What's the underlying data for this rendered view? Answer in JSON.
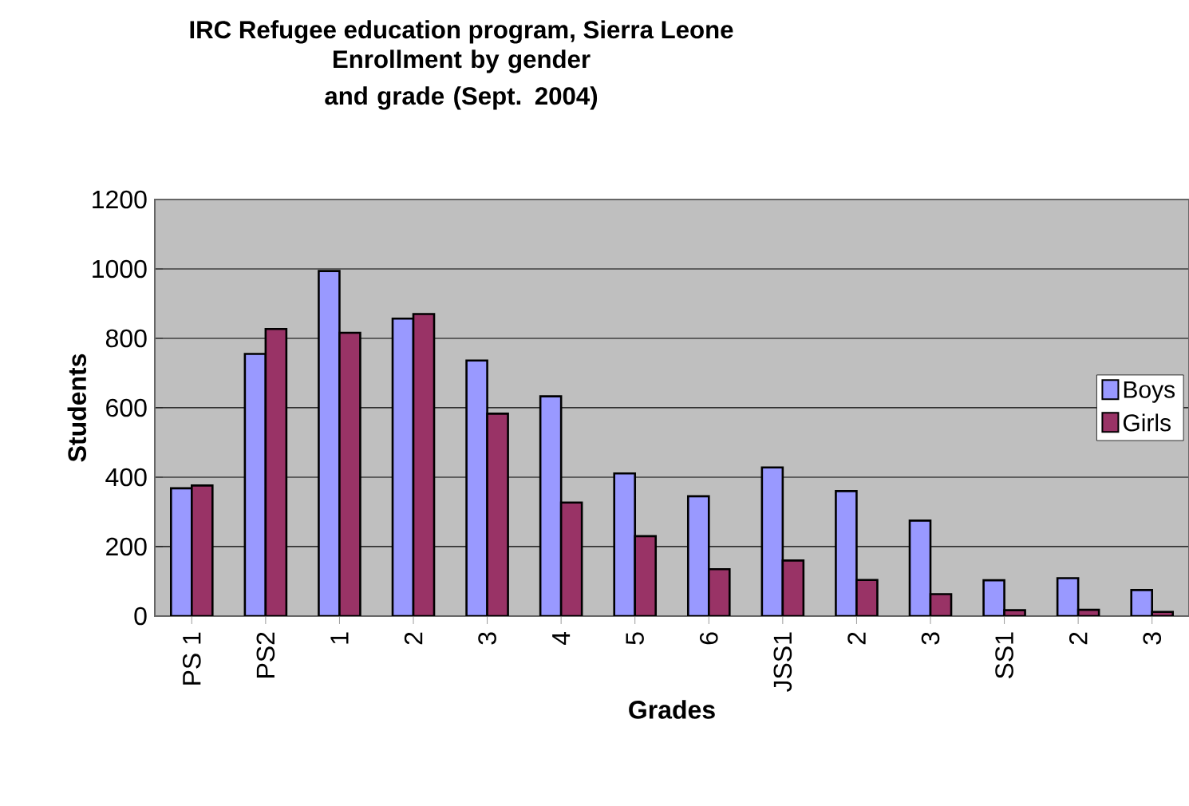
{
  "chart_data": {
    "type": "bar",
    "title": "IRC Refugee education program, Sierra Leone",
    "subtitle": "Enrollment by gender and grade (Sept. 2004)",
    "xlabel": "Grades",
    "ylabel": "Students",
    "categories": [
      "PS 1",
      "PS2",
      "1",
      "2",
      "3",
      "4",
      "5",
      "6",
      "JSS1",
      "2",
      "3",
      "SS1",
      "2",
      "3"
    ],
    "series": [
      {
        "name": "Boys",
        "color": "#9999ff",
        "values": [
          368,
          755,
          994,
          857,
          736,
          633,
          411,
          345,
          428,
          360,
          275,
          103,
          109,
          75
        ]
      },
      {
        "name": "Girls",
        "color": "#993366",
        "values": [
          376,
          827,
          816,
          870,
          583,
          327,
          230,
          135,
          160,
          104,
          63,
          17,
          18,
          12
        ]
      }
    ],
    "ylim": [
      0,
      1200
    ],
    "yticks": [
      0,
      200,
      400,
      600,
      800,
      1000,
      1200
    ],
    "grid": "y",
    "legend": "right"
  }
}
